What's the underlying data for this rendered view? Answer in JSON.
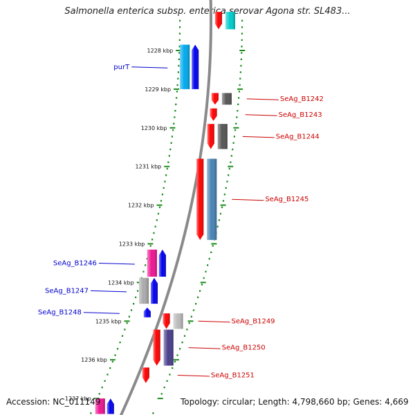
{
  "title": "Salmonella enterica subsp. enterica serovar Agona str. SL483...",
  "footer": {
    "accession": "Accession: NC_011149",
    "topology": "Topology: circular; Length: 4,798,660 bp; Genes: 4,669"
  },
  "colors": {
    "tick": "#1a8a1a",
    "backbone": "#8a8a8a",
    "label_left": "#0000cc",
    "label_right": "#cc0000"
  },
  "map": {
    "ticks": [
      {
        "label": "1228 kbp",
        "kbp": 1228
      },
      {
        "label": "1229 kbp",
        "kbp": 1229
      },
      {
        "label": "1230 kbp",
        "kbp": 1230
      },
      {
        "label": "1231 kbp",
        "kbp": 1231
      },
      {
        "label": "1232 kbp",
        "kbp": 1232
      },
      {
        "label": "1233 kbp",
        "kbp": 1233
      },
      {
        "label": "1234 kbp",
        "kbp": 1234
      },
      {
        "label": "1235 kbp",
        "kbp": 1235
      },
      {
        "label": "1236 kbp",
        "kbp": 1236
      },
      {
        "label": "1237 kbp",
        "kbp": 1237
      }
    ],
    "genes": [
      {
        "name": "",
        "strand": "-",
        "start_kbp": 1227.0,
        "end_kbp": 1227.45,
        "color": "#ff0000",
        "cog_color": "#00cccc"
      },
      {
        "name": "purT",
        "strand": "+",
        "start_kbp": 1227.85,
        "end_kbp": 1229.0,
        "color": "#0000ee",
        "cog_color": "#00aaee"
      },
      {
        "name": "SeAg_B1242",
        "strand": "-",
        "start_kbp": 1229.1,
        "end_kbp": 1229.4,
        "color": "#ff0000",
        "cog_color": "#555555"
      },
      {
        "name": "SeAg_B1243",
        "strand": "-",
        "start_kbp": 1229.5,
        "end_kbp": 1229.82,
        "color": "#ff0000",
        "cog_color": ""
      },
      {
        "name": "SeAg_B1244",
        "strand": "-",
        "start_kbp": 1229.9,
        "end_kbp": 1230.55,
        "color": "#ff0000",
        "cog_color": "#555555"
      },
      {
        "name": "SeAg_B1245",
        "strand": "-",
        "start_kbp": 1230.8,
        "end_kbp": 1232.9,
        "color": "#ff0000",
        "cog_color": "#4682b4"
      },
      {
        "name": "SeAg_B1246",
        "strand": "+",
        "start_kbp": 1233.15,
        "end_kbp": 1233.85,
        "color": "#0000ee",
        "cog_color": "#ee1493"
      },
      {
        "name": "SeAg_B1247",
        "strand": "+",
        "start_kbp": 1233.88,
        "end_kbp": 1234.55,
        "color": "#0000ee",
        "cog_color": "#aaaaaa"
      },
      {
        "name": "SeAg_B1248",
        "strand": "+",
        "start_kbp": 1234.65,
        "end_kbp": 1234.9,
        "color": "#0000ee",
        "cog_color": ""
      },
      {
        "name": "SeAg_B1249",
        "strand": "-",
        "start_kbp": 1234.8,
        "end_kbp": 1235.2,
        "color": "#ff0000",
        "cog_color": "#bbbbbb"
      },
      {
        "name": "SeAg_B1250",
        "strand": "-",
        "start_kbp": 1235.22,
        "end_kbp": 1236.15,
        "color": "#ff0000",
        "cog_color": "#483d8b"
      },
      {
        "name": "SeAg_B1251",
        "strand": "-",
        "start_kbp": 1236.2,
        "end_kbp": 1236.6,
        "color": "#ff0000",
        "cog_color": ""
      },
      {
        "name": "",
        "strand": "+",
        "start_kbp": 1237.0,
        "end_kbp": 1237.4,
        "color": "#0000ee",
        "cog_color": "#ee1493"
      }
    ]
  }
}
